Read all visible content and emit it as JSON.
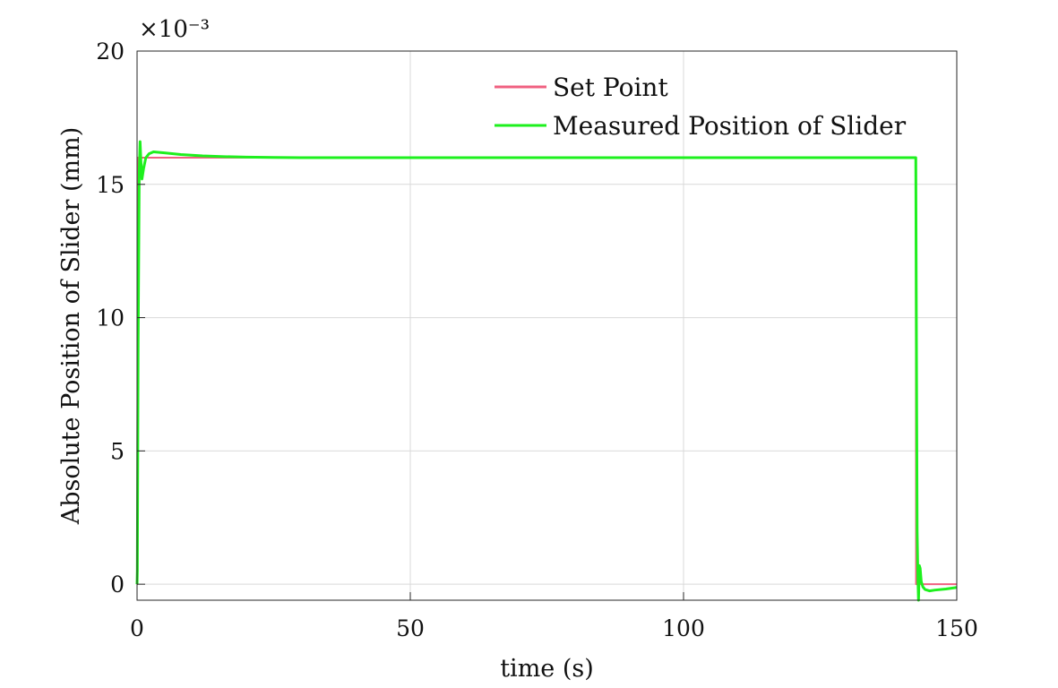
{
  "chart_data": {
    "type": "line",
    "xlabel": "time (s)",
    "ylabel": "Absolute Position of Slider (mm)",
    "y_scale_exponent": "×10⁻³",
    "xlim": [
      0,
      150
    ],
    "ylim": [
      -0.6,
      20
    ],
    "x_ticks": [
      0,
      50,
      100,
      150
    ],
    "y_ticks": [
      0,
      5,
      10,
      15,
      20
    ],
    "grid": true,
    "legend_position": "top-center",
    "series": [
      {
        "name": "Set Point",
        "color": "#f06080",
        "x": [
          0,
          0.05,
          0.1,
          142.5,
          142.55,
          150
        ],
        "y": [
          0,
          0,
          16,
          16,
          0,
          0
        ]
      },
      {
        "name": "Measured Position of Slider",
        "color": "#1ef01e",
        "x": [
          0,
          0.05,
          0.2,
          0.4,
          0.55,
          0.7,
          0.9,
          1.2,
          1.6,
          2.2,
          3,
          5,
          8,
          12,
          16,
          20,
          25,
          30,
          40,
          60,
          100,
          142.5,
          142.62,
          142.75,
          142.9,
          143.0,
          143.15,
          143.3,
          143.5,
          143.8,
          144.2,
          145,
          146,
          148,
          150
        ],
        "y": [
          0,
          0.5,
          9,
          15.5,
          16.6,
          15.9,
          15.2,
          15.6,
          16.0,
          16.15,
          16.22,
          16.18,
          16.12,
          16.07,
          16.04,
          16.02,
          16.01,
          16.0,
          16.0,
          16.0,
          16.0,
          16.0,
          9,
          2,
          0.1,
          -0.6,
          0.7,
          0.6,
          0.1,
          -0.1,
          -0.2,
          -0.25,
          -0.22,
          -0.18,
          -0.12
        ]
      }
    ]
  }
}
